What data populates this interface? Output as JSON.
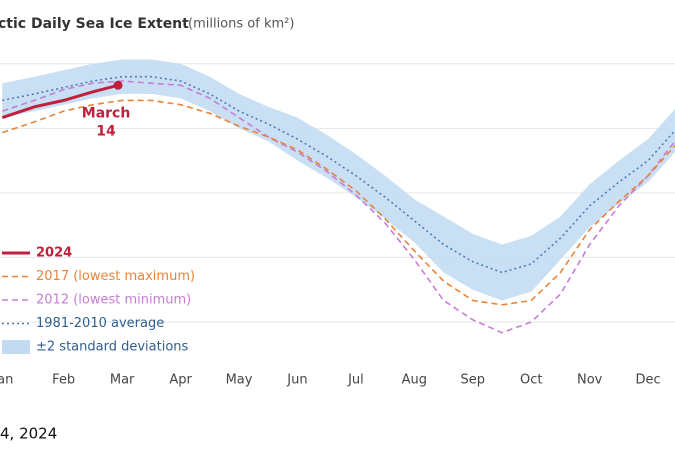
{
  "chart_data": {
    "type": "line",
    "title": "ctic Daily Sea Ice Extent",
    "subtitle": "(millions of km²)",
    "footer": "4, 2024",
    "annotation": {
      "text": "March\n14",
      "series": 0
    },
    "categories": [
      "an",
      "Feb",
      "Mar",
      "Apr",
      "May",
      "Jun",
      "Jul",
      "Aug",
      "Sep",
      "Oct",
      "Nov",
      "Dec"
    ],
    "xlim": [
      0.41,
      11.96
    ],
    "ylim": [
      2,
      18.5
    ],
    "ygrid": [
      4,
      7,
      10,
      13,
      16
    ],
    "grid": true,
    "legend": "bottom-left",
    "series": [
      {
        "name": "2024",
        "color": "#c0203c",
        "style": "solid",
        "x": [
          0.45,
          1.0,
          1.5,
          2.0,
          2.43
        ],
        "values": [
          13.5,
          14.0,
          14.3,
          14.7,
          15.0
        ]
      },
      {
        "name": "2017 (lowest maximum)",
        "color": "#e8843a",
        "style": "dashed",
        "x": [
          0.45,
          1.0,
          1.5,
          2.0,
          2.5,
          3.0,
          3.5,
          4.0,
          4.5,
          5.0,
          5.5,
          6.0,
          6.5,
          7.0,
          7.5,
          8.0,
          8.5,
          9.0,
          9.5,
          10.0,
          10.5,
          11.0,
          11.5,
          11.96
        ],
        "values": [
          12.8,
          13.3,
          13.8,
          14.1,
          14.3,
          14.3,
          14.1,
          13.7,
          13.1,
          12.6,
          12.0,
          11.1,
          10.1,
          8.8,
          7.3,
          5.9,
          5.0,
          4.8,
          5.0,
          6.3,
          8.3,
          9.6,
          10.8,
          12.2
        ]
      },
      {
        "name": "2012 (lowest minimum)",
        "color": "#c77dd6",
        "style": "dashed",
        "x": [
          0.45,
          1.0,
          1.5,
          2.0,
          2.5,
          3.0,
          3.5,
          4.0,
          4.5,
          5.0,
          5.5,
          6.0,
          6.5,
          7.0,
          7.5,
          8.0,
          8.5,
          9.0,
          9.5,
          10.0,
          10.5,
          11.0,
          11.5,
          11.96
        ],
        "values": [
          13.8,
          14.3,
          14.8,
          15.1,
          15.2,
          15.1,
          15.0,
          14.4,
          13.5,
          12.6,
          11.9,
          11.0,
          9.9,
          8.6,
          6.9,
          5.0,
          4.1,
          3.5,
          4.0,
          5.3,
          7.6,
          9.4,
          10.8,
          12.4
        ]
      },
      {
        "name": "1981-2010 average",
        "color": "#4a7fb5",
        "style": "dotted",
        "x": [
          0.45,
          1.0,
          1.5,
          2.0,
          2.5,
          3.0,
          3.5,
          4.0,
          4.5,
          5.0,
          5.5,
          6.0,
          6.5,
          7.0,
          7.5,
          8.0,
          8.5,
          9.0,
          9.5,
          10.0,
          10.5,
          11.0,
          11.5,
          11.96
        ],
        "values": [
          14.3,
          14.6,
          14.9,
          15.2,
          15.4,
          15.4,
          15.2,
          14.6,
          13.8,
          13.2,
          12.5,
          11.7,
          10.8,
          9.8,
          8.7,
          7.6,
          6.8,
          6.3,
          6.7,
          7.9,
          9.4,
          10.5,
          11.5,
          12.9
        ]
      }
    ],
    "band": {
      "name": "±2 standard deviations",
      "color": "#c3dbf2",
      "x": [
        0.45,
        1.0,
        1.5,
        2.0,
        2.5,
        3.0,
        3.5,
        4.0,
        4.5,
        5.0,
        5.5,
        6.0,
        6.5,
        7.0,
        7.5,
        8.0,
        8.5,
        9.0,
        9.5,
        10.0,
        10.5,
        11.0,
        11.5,
        11.96
      ],
      "upper": [
        15.1,
        15.4,
        15.7,
        16.0,
        16.2,
        16.2,
        16.0,
        15.4,
        14.6,
        14.0,
        13.5,
        12.7,
        11.8,
        10.8,
        9.7,
        8.9,
        8.1,
        7.6,
        8.0,
        8.9,
        10.4,
        11.5,
        12.5,
        13.9
      ],
      "lower": [
        13.5,
        13.8,
        14.1,
        14.4,
        14.6,
        14.6,
        14.4,
        13.8,
        13.0,
        12.4,
        11.5,
        10.7,
        9.8,
        8.8,
        7.7,
        6.3,
        5.5,
        5.0,
        5.4,
        6.9,
        8.4,
        9.5,
        10.5,
        11.9
      ]
    }
  }
}
